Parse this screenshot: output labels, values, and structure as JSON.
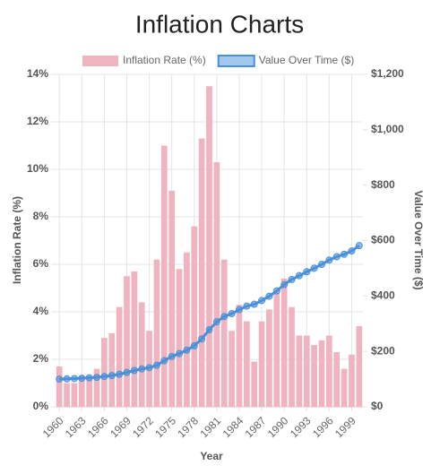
{
  "chart_data": {
    "type": "bar",
    "title": "Inflation Charts",
    "x_label": "Year",
    "y_label": "Inflation Rate (%)",
    "y2_label": "Value Over Time ($)",
    "categories": [
      "1960",
      null,
      null,
      "1963",
      null,
      null,
      "1966",
      null,
      null,
      "1969",
      null,
      null,
      "1972",
      null,
      null,
      "1975",
      null,
      null,
      "1978",
      null,
      null,
      "1981",
      null,
      null,
      "1984",
      null,
      null,
      "1987",
      null,
      null,
      "1990",
      null,
      null,
      "1993",
      null,
      null,
      "1996",
      null,
      null,
      "1999",
      null
    ],
    "series": [
      {
        "name": "Inflation Rate (%)",
        "type": "bar",
        "color": "#f0b3c0",
        "axis": "y",
        "values": [
          1.7,
          1.0,
          1.0,
          1.3,
          1.3,
          1.6,
          2.9,
          3.1,
          4.2,
          5.5,
          5.7,
          4.4,
          3.2,
          6.2,
          11.0,
          9.1,
          5.8,
          6.5,
          7.6,
          11.3,
          13.5,
          10.3,
          6.2,
          3.2,
          4.3,
          3.6,
          1.9,
          3.6,
          4.1,
          4.8,
          5.4,
          4.2,
          3.0,
          3.0,
          2.6,
          2.8,
          3.0,
          2.3,
          1.6,
          2.2,
          3.4
        ]
      },
      {
        "name": "Value Over Time ($)",
        "type": "line",
        "color": "#4a90d9",
        "axis": "y2",
        "values": [
          100,
          101.0,
          102.0,
          103.3,
          104.7,
          106.3,
          109.4,
          112.8,
          117.5,
          124.0,
          131.0,
          136.8,
          141.2,
          149.9,
          166.4,
          181.6,
          192.1,
          204.6,
          220.2,
          245.1,
          278.2,
          306.8,
          325.8,
          336.2,
          350.7,
          363.3,
          370.2,
          383.5,
          399.2,
          418.4,
          441.0,
          459.5,
          473.3,
          487.5,
          500.2,
          514.2,
          529.6,
          541.8,
          550.5,
          562.6,
          581.7
        ]
      }
    ],
    "ylim": [
      0,
      14
    ],
    "yticks": [
      {
        "value": 0,
        "label": "0%"
      },
      {
        "value": 2,
        "label": "2%"
      },
      {
        "value": 4,
        "label": "4%"
      },
      {
        "value": 6,
        "label": "6%"
      },
      {
        "value": 8,
        "label": "8%"
      },
      {
        "value": 10,
        "label": "10%"
      },
      {
        "value": 12,
        "label": "12%"
      },
      {
        "value": 14,
        "label": "14%"
      }
    ],
    "y2lim": [
      0,
      1200
    ],
    "y2ticks": [
      {
        "value": 0,
        "label": "$0"
      },
      {
        "value": 200,
        "label": "$200"
      },
      {
        "value": 400,
        "label": "$400"
      },
      {
        "value": 600,
        "label": "$600"
      },
      {
        "value": 800,
        "label": "$800"
      },
      {
        "value": 1000,
        "label": "$1,000"
      },
      {
        "value": 1200,
        "label": "$1,200"
      }
    ],
    "grid": true,
    "legend": "top"
  }
}
